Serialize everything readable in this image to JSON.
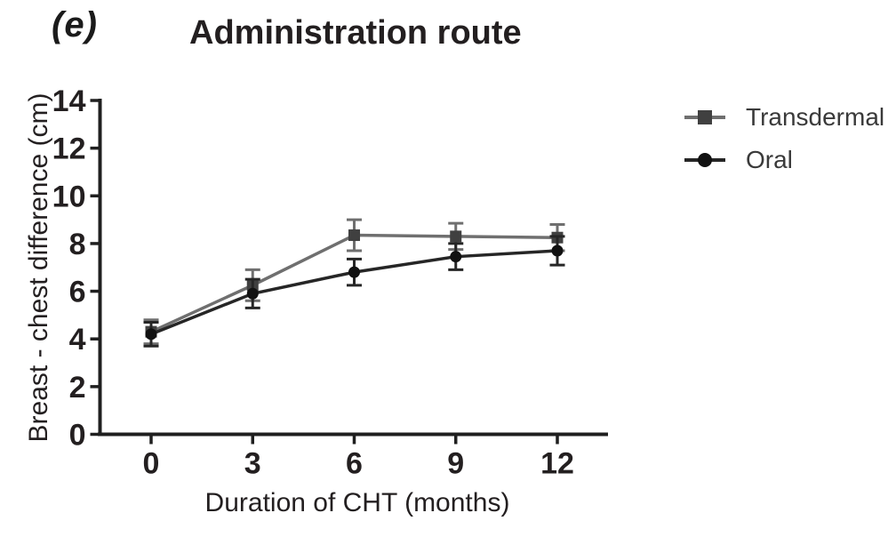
{
  "figure": {
    "panel_label": "(e)"
  },
  "chart_data": {
    "type": "line",
    "title": "Administration route",
    "xlabel": "Duration of CHT (months)",
    "ylabel": "Breast - chest difference (cm)",
    "x": [
      0,
      3,
      6,
      9,
      12
    ],
    "xtick_labels": [
      "0",
      "3",
      "6",
      "9",
      "12"
    ],
    "ytick_values": [
      0,
      2,
      4,
      6,
      8,
      10,
      12,
      14
    ],
    "ytick_labels": [
      "0",
      "2",
      "4",
      "6",
      "8",
      "10",
      "12",
      "14"
    ],
    "xlim": [
      0,
      12
    ],
    "ylim": [
      0,
      14
    ],
    "grid": false,
    "error_bars": true,
    "legend_position": "right-outside",
    "axis_color": "#1f1f1f",
    "series": [
      {
        "name": "Transdermal",
        "marker": "square",
        "color": "#6f6f6f",
        "marker_color": "#404040",
        "values": [
          4.3,
          6.25,
          8.35,
          8.3,
          8.25
        ],
        "errors": [
          0.5,
          0.65,
          0.65,
          0.55,
          0.55
        ]
      },
      {
        "name": "Oral",
        "marker": "circle",
        "color": "#262626",
        "marker_color": "#111111",
        "values": [
          4.2,
          5.9,
          6.8,
          7.45,
          7.7
        ],
        "errors": [
          0.5,
          0.6,
          0.55,
          0.55,
          0.6
        ]
      }
    ]
  }
}
